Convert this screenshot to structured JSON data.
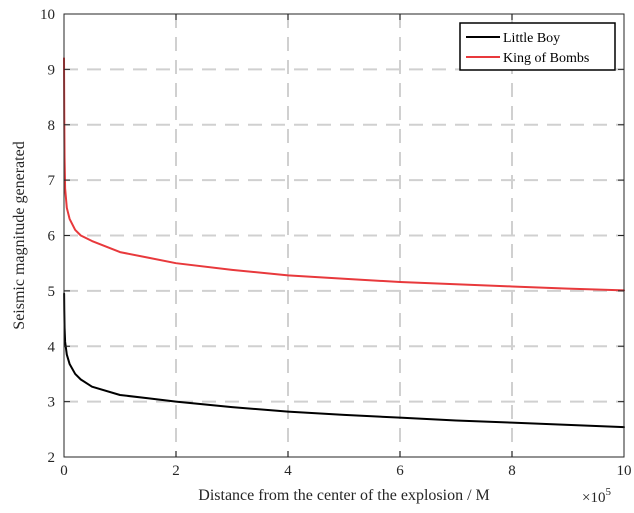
{
  "chart_data": {
    "type": "line",
    "xlabel": "Distance from the center of the explosion / M",
    "ylabel": "Seismic magnitude generated",
    "x_exponent_base": "×10",
    "x_exponent_power": "5",
    "xlim": [
      0,
      10
    ],
    "ylim": [
      2,
      10
    ],
    "x_ticks": [
      "0",
      "2",
      "4",
      "6",
      "8",
      "10"
    ],
    "y_ticks": [
      "2",
      "3",
      "4",
      "5",
      "6",
      "7",
      "8",
      "9",
      "10"
    ],
    "grid": true,
    "legend_position": "top-right",
    "series": [
      {
        "name": "Little Boy",
        "color": "#000000",
        "x": [
          0.002,
          0.005,
          0.01,
          0.02,
          0.05,
          0.1,
          0.2,
          0.3,
          0.5,
          1,
          1.5,
          2,
          3,
          4,
          5,
          6,
          7,
          8,
          9,
          10
        ],
        "y": [
          4.95,
          4.65,
          4.33,
          4.08,
          3.85,
          3.68,
          3.5,
          3.4,
          3.27,
          3.12,
          3.06,
          3.0,
          2.9,
          2.82,
          2.76,
          2.71,
          2.66,
          2.62,
          2.58,
          2.54
        ]
      },
      {
        "name": "King of Bombs",
        "color": "#e8393c",
        "x": [
          0.0,
          0.005,
          0.01,
          0.02,
          0.05,
          0.1,
          0.2,
          0.3,
          0.5,
          1,
          1.5,
          2,
          3,
          4,
          5,
          6,
          7,
          8,
          9,
          10
        ],
        "y": [
          9.2,
          8.1,
          7.4,
          6.85,
          6.5,
          6.3,
          6.1,
          6.0,
          5.9,
          5.7,
          5.6,
          5.5,
          5.38,
          5.28,
          5.22,
          5.16,
          5.12,
          5.08,
          5.04,
          5.01
        ]
      }
    ]
  }
}
